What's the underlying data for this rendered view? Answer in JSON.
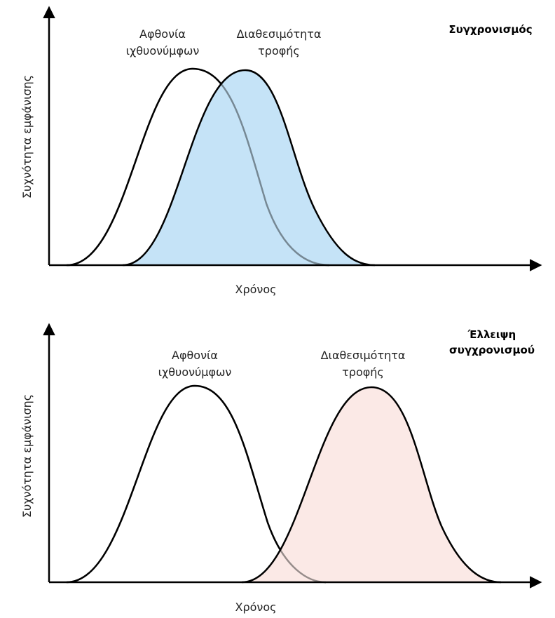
{
  "panels": [
    {
      "title": [
        "Συγχρονισμός"
      ],
      "y_label": "Συχνότητα εμφάνισης",
      "x_label": "Χρόνος",
      "curves": [
        {
          "label": [
            "Αφθονία",
            "ιχθυονύμφων"
          ]
        },
        {
          "label": [
            "Διαθεσιμότητα",
            "τροφής"
          ]
        }
      ]
    },
    {
      "title": [
        "Έλλειψη",
        "συγχρονισμού"
      ],
      "y_label": "Συχνότητα εμφάνισης",
      "x_label": "Χρόνος",
      "curves": [
        {
          "label": [
            "Αφθονία",
            "ιχθυονύμφων"
          ]
        },
        {
          "label": [
            "Διαθεσιμότητα",
            "τροφής"
          ]
        }
      ]
    }
  ]
}
